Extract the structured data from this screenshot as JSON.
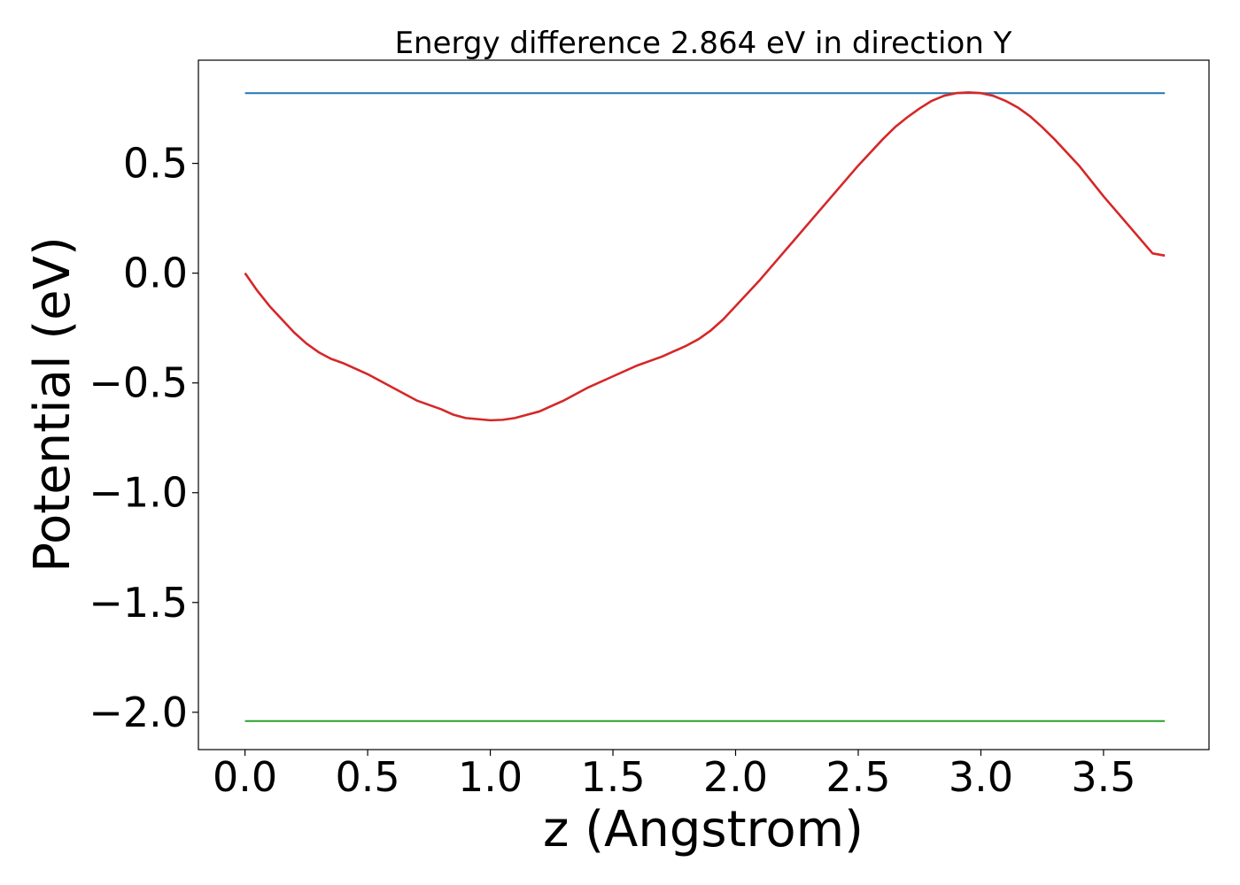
{
  "chart_data": {
    "type": "line",
    "title": "Energy difference 2.864 eV in direction Y",
    "xlabel": "z (Angstrom)",
    "ylabel": "Potential (eV)",
    "xlim": [
      -0.19,
      3.93
    ],
    "ylim": [
      -2.17,
      0.97
    ],
    "x_ticks": [
      0.0,
      0.5,
      1.0,
      1.5,
      2.0,
      2.5,
      3.0,
      3.5
    ],
    "x_tick_labels": [
      "0.0",
      "0.5",
      "1.0",
      "1.5",
      "2.0",
      "2.5",
      "3.0",
      "3.5"
    ],
    "y_ticks": [
      0.5,
      0.0,
      -0.5,
      -1.0,
      -1.5,
      -2.0
    ],
    "y_tick_labels": [
      "0.5",
      "0.0",
      "−0.5",
      "−1.0",
      "−1.5",
      "−2.0"
    ],
    "grid": false,
    "series": [
      {
        "color": "#1f77b4",
        "x": [
          0.0,
          3.75
        ],
        "y": [
          0.82,
          0.82
        ]
      },
      {
        "color": "#d62728",
        "x": [
          0.0,
          0.05,
          0.1,
          0.15,
          0.2,
          0.25,
          0.3,
          0.35,
          0.4,
          0.5,
          0.6,
          0.7,
          0.8,
          0.85,
          0.9,
          0.95,
          1.0,
          1.05,
          1.1,
          1.15,
          1.2,
          1.25,
          1.3,
          1.4,
          1.5,
          1.6,
          1.7,
          1.75,
          1.8,
          1.85,
          1.9,
          1.95,
          2.0,
          2.1,
          2.2,
          2.3,
          2.4,
          2.5,
          2.6,
          2.65,
          2.7,
          2.75,
          2.8,
          2.85,
          2.9,
          2.95,
          3.0,
          3.05,
          3.1,
          3.15,
          3.2,
          3.25,
          3.3,
          3.4,
          3.5,
          3.6,
          3.7,
          3.75
        ],
        "y": [
          0.0,
          -0.08,
          -0.15,
          -0.21,
          -0.27,
          -0.32,
          -0.36,
          -0.39,
          -0.41,
          -0.46,
          -0.52,
          -0.58,
          -0.62,
          -0.645,
          -0.66,
          -0.665,
          -0.67,
          -0.668,
          -0.66,
          -0.645,
          -0.63,
          -0.605,
          -0.58,
          -0.52,
          -0.47,
          -0.42,
          -0.38,
          -0.355,
          -0.33,
          -0.3,
          -0.26,
          -0.21,
          -0.15,
          -0.03,
          0.1,
          0.23,
          0.36,
          0.49,
          0.61,
          0.665,
          0.71,
          0.75,
          0.785,
          0.808,
          0.82,
          0.823,
          0.82,
          0.808,
          0.785,
          0.755,
          0.715,
          0.665,
          0.61,
          0.49,
          0.35,
          0.22,
          0.09,
          0.08
        ]
      },
      {
        "color": "#2ca02c",
        "x": [
          0.0,
          3.75
        ],
        "y": [
          -2.04,
          -2.04
        ]
      }
    ]
  }
}
